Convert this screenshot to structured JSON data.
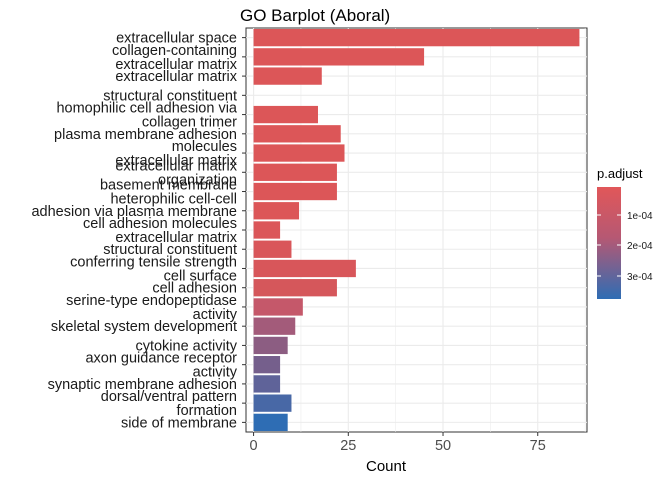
{
  "chart_data": {
    "type": "bar",
    "orientation": "horizontal",
    "title": "GO Barplot (Aboral)",
    "xlabel": "Count",
    "ylabel": "",
    "xlim": [
      0,
      88
    ],
    "xticks": [
      0,
      25,
      50,
      75
    ],
    "grid": true,
    "legend_position": "right",
    "legend": {
      "title": "p.adjust",
      "ticks": [
        "1e-04",
        "2e-04",
        "3e-04"
      ],
      "color_low_padj": "#E15759",
      "color_high_padj": "#2E6DB4"
    },
    "categories": [
      {
        "lines": [
          "extracellular space"
        ],
        "value": 86,
        "color": "#DC5658"
      },
      {
        "lines": [
          "collagen-containing",
          "extracellular matrix"
        ],
        "value": 45,
        "color": "#DC5658"
      },
      {
        "lines": [
          "extracellular matrix"
        ],
        "value": 18,
        "color": "#DC5658"
      },
      {
        "lines": [
          "structural constituent"
        ],
        "value": 0,
        "color": "#DC5658",
        "hidden_bar": true
      },
      {
        "lines": [
          "homophilic cell adhesion via",
          "collagen trimer"
        ],
        "value": 17,
        "color": "#DC5658"
      },
      {
        "lines": [
          "plasma membrane adhesion"
        ],
        "value": 23,
        "color": "#DC5658"
      },
      {
        "lines": [
          "molecules",
          "extracellular matrix"
        ],
        "value": 24,
        "color": "#DC5658"
      },
      {
        "lines": [
          "extracellular matrix",
          "organization"
        ],
        "value": 22,
        "color": "#DC5658"
      },
      {
        "lines": [
          "basement membrane",
          "heterophilic cell-cell"
        ],
        "value": 22,
        "color": "#DC5658"
      },
      {
        "lines": [
          "adhesion via plasma membrane"
        ],
        "value": 12,
        "color": "#DC5658"
      },
      {
        "lines": [
          "cell adhesion molecules",
          "extracellular matrix"
        ],
        "value": 7,
        "color": "#DB5659"
      },
      {
        "lines": [
          "structural constituent"
        ],
        "value": 10,
        "color": "#D9565A"
      },
      {
        "lines": [
          "conferring tensile strength",
          "cell surface"
        ],
        "value": 27,
        "color": "#D8565A"
      },
      {
        "lines": [
          "cell adhesion"
        ],
        "value": 22,
        "color": "#D5575B"
      },
      {
        "lines": [
          "serine-type endopeptidase",
          "activity"
        ],
        "value": 13,
        "color": "#C5586A"
      },
      {
        "lines": [
          "skeletal system development"
        ],
        "value": 11,
        "color": "#A35B7A"
      },
      {
        "lines": [
          "cytokine activity"
        ],
        "value": 9,
        "color": "#8C5D82"
      },
      {
        "lines": [
          "axon guidance receptor",
          "activity"
        ],
        "value": 7,
        "color": "#755F8C"
      },
      {
        "lines": [
          "synaptic membrane adhesion"
        ],
        "value": 7,
        "color": "#5F6399"
      },
      {
        "lines": [
          "dorsal/ventral pattern",
          "formation"
        ],
        "value": 10,
        "color": "#4868A6"
      },
      {
        "lines": [
          "side of membrane"
        ],
        "value": 9,
        "color": "#2E6DB4"
      }
    ]
  }
}
